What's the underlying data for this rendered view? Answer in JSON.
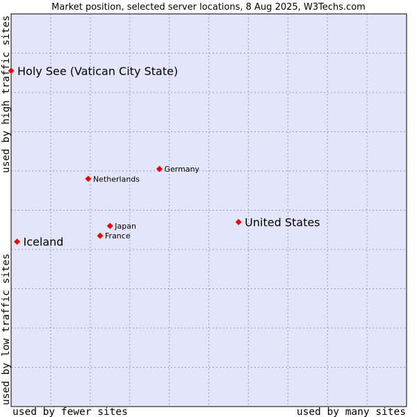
{
  "chart_data": {
    "type": "scatter",
    "title": "Market position, selected server locations, 8 Aug 2025, W3Techs.com",
    "xlabel_left": "used by fewer sites",
    "xlabel_right": "used by many sites",
    "ylabel_bottom": "used by low traffic sites",
    "ylabel_top": "used by high traffic sites",
    "xlim": [
      0,
      100
    ],
    "ylim": [
      0,
      100
    ],
    "grid": true,
    "colors": {
      "plot_bg": "#e3e5f9",
      "grid": "#9999bb",
      "marker": "#ee0000",
      "border": "#000000"
    },
    "points": [
      {
        "label": "Holy See (Vatican City State)",
        "x": 0.0,
        "y": 85.5,
        "size": "large"
      },
      {
        "label": "Germany",
        "x": 37.5,
        "y": 60.5,
        "size": "small"
      },
      {
        "label": "Netherlands",
        "x": 19.5,
        "y": 58.0,
        "size": "small"
      },
      {
        "label": "United States",
        "x": 57.5,
        "y": 47.0,
        "size": "large"
      },
      {
        "label": "Japan",
        "x": 25.0,
        "y": 46.0,
        "size": "small"
      },
      {
        "label": "France",
        "x": 22.5,
        "y": 43.5,
        "size": "small"
      },
      {
        "label": "Iceland",
        "x": 1.5,
        "y": 42.0,
        "size": "large"
      }
    ]
  }
}
